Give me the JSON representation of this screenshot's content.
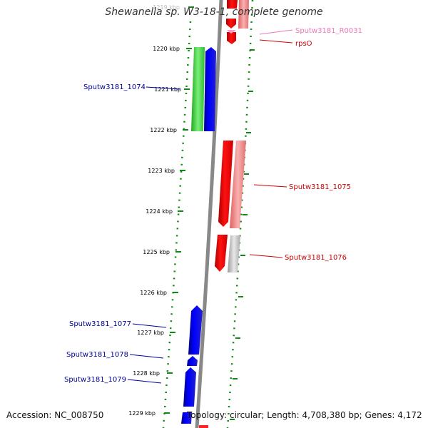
{
  "title": "Shewanella sp. W3-18-1, complete genome",
  "accession_text": "Accession: NC_008750",
  "summary_text": "Topology: circular; Length: 4,708,380 bp; Genes: 4,172",
  "colors": {
    "forward_gene": "#0000ff",
    "reverse_gene": "#ff0000",
    "reverse_gene_light": "#f08080",
    "rna_gene": "#ff99cc",
    "highlight_gene": "#33cc33",
    "grey_gene": "#bbbbbb",
    "backbone": "#888888",
    "ticks": "#118811",
    "label_blue": "#000099",
    "label_red": "#cc0000",
    "label_pink": "#ee77bb"
  },
  "scale_ticks": [
    "1219 kbp",
    "1220 kbp",
    "1221 kbp",
    "1222 kbp",
    "1223 kbp",
    "1224 kbp",
    "1225 kbp",
    "1226 kbp",
    "1227 kbp",
    "1228 kbp",
    "1229 kbp"
  ],
  "gene_labels": [
    {
      "text": "Sputw3181_R0031",
      "color": "label_pink"
    },
    {
      "text": "rpsO",
      "color": "label_red"
    },
    {
      "text": "Sputw3181_1074",
      "color": "label_blue"
    },
    {
      "text": "Sputw3181_1075",
      "color": "label_red"
    },
    {
      "text": "Sputw3181_1076",
      "color": "label_red"
    },
    {
      "text": "Sputw3181_1077",
      "color": "label_blue"
    },
    {
      "text": "Sputw3181_1078",
      "color": "label_blue"
    },
    {
      "text": "Sputw3181_1079",
      "color": "label_blue"
    }
  ]
}
